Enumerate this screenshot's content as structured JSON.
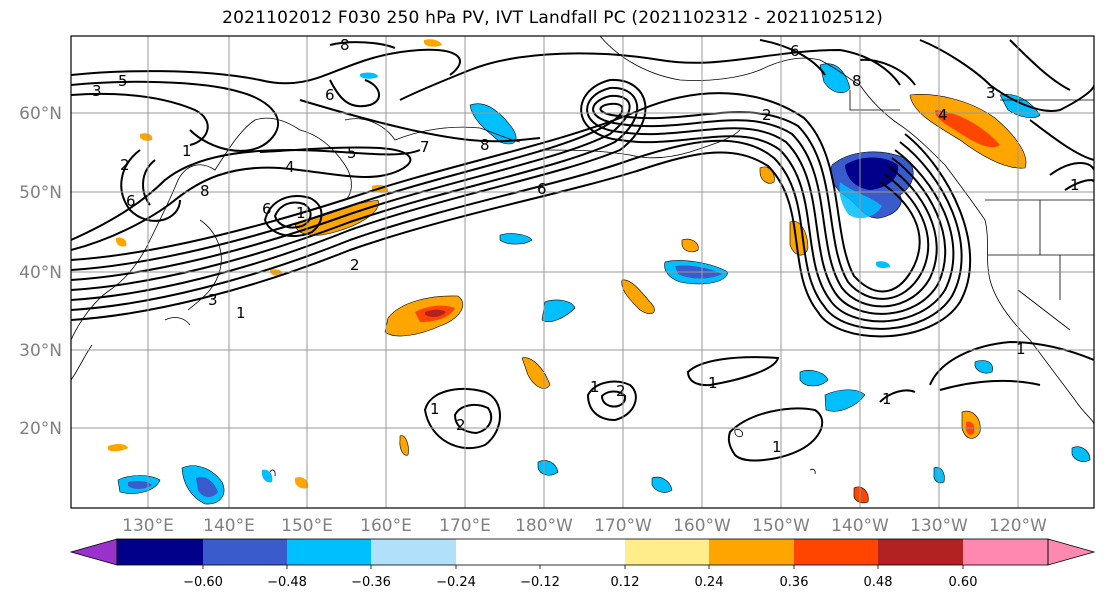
{
  "title": "2021102012 F030 250 hPa PV, IVT Landfall PC (2021102312 - 2021102512)",
  "lat_labels": [
    "60°N",
    "50°N",
    "40°N",
    "30°N",
    "20°N"
  ],
  "lon_labels": [
    "130°E",
    "140°E",
    "150°E",
    "160°E",
    "170°E",
    "180°W",
    "170°W",
    "160°W",
    "150°W",
    "140°W",
    "130°W",
    "120°W"
  ],
  "colorbar": {
    "colors": [
      "#9932cc",
      "#00008b",
      "#3a5bcc",
      "#00bfff",
      "#b0e0fa",
      "#ffffff",
      "#ffec8b",
      "#ffa500",
      "#ff4500",
      "#b22222",
      "#ff88b0"
    ],
    "tick_labels": [
      "−0.60",
      "−0.48",
      "−0.36",
      "−0.24",
      "−0.12",
      "0.12",
      "0.24",
      "0.36",
      "0.48",
      "0.60"
    ]
  },
  "contour_labels": [
    "8",
    "6",
    "5",
    "3",
    "6",
    "2",
    "8",
    "4",
    "6",
    "5",
    "7",
    "8",
    "6",
    "4",
    "2",
    "1",
    "3",
    "1",
    "1",
    "1",
    "2",
    "1",
    "2",
    "1",
    "1",
    "1",
    "3",
    "1",
    "1",
    "8",
    "6",
    "2"
  ]
}
